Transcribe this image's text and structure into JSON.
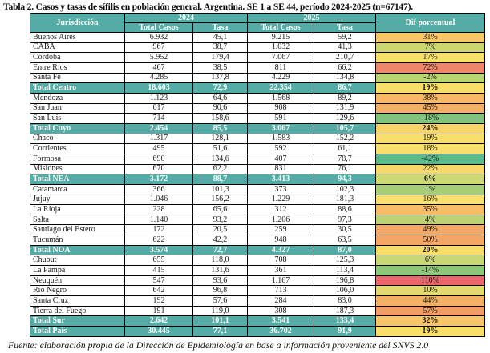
{
  "title": "Tabla 2. Casos y tasas de sífilis en población general. Argentina. SE 1 a SE 44, período 2024-2025 (n=67147).",
  "footer": "Fuente: elaboración propia de la Dirección de Epidemiología en base a información proveniente del SNVS 2.0",
  "colors": {
    "header_teal": "#55ACA6",
    "scale_green": "#57BB8A",
    "scale_yellow": "#F9DE6A",
    "scale_red": "#EB656C"
  },
  "table": {
    "headers": {
      "jurisdiction": "Jurisdicción",
      "year_2024": "2024",
      "year_2025": "2025",
      "total_cases_2024": "Total Casos",
      "rate_2024": "Tasa",
      "total_cases_2025": "Total Casos",
      "rate_2025": "Tasa",
      "diff": "Dif porcentual"
    },
    "rows": [
      {
        "name": "Buenos Aires",
        "cases_2024": "6.932",
        "rate_2024": "45,1",
        "cases_2025": "9.215",
        "rate_2025": "59,2",
        "diff": "31%",
        "diff_color": "#F8C868",
        "total": false
      },
      {
        "name": "CABA",
        "cases_2024": "967",
        "rate_2024": "38,7",
        "cases_2025": "1.032",
        "rate_2025": "41,3",
        "diff": "7%",
        "diff_color": "#CBD671",
        "total": false
      },
      {
        "name": "Córdoba",
        "cases_2024": "5.952",
        "rate_2024": "179,4",
        "cases_2025": "7.067",
        "rate_2025": "210,7",
        "diff": "17%",
        "diff_color": "#F9E06D",
        "total": false
      },
      {
        "name": "Entre Ríos",
        "cases_2024": "467",
        "rate_2024": "38,5",
        "cases_2025": "811",
        "rate_2025": "66,2",
        "diff": "72%",
        "diff_color": "#F0876A",
        "total": false
      },
      {
        "name": "Santa Fe",
        "cases_2024": "4.285",
        "rate_2024": "137,8",
        "cases_2025": "4.229",
        "rate_2025": "134,8",
        "diff": "-2%",
        "diff_color": "#B9D473",
        "total": false
      },
      {
        "name": "Total Centro",
        "cases_2024": "18.603",
        "rate_2024": "72,9",
        "cases_2025": "22.354",
        "rate_2025": "86,7",
        "diff": "19%",
        "diff_color": "#F9DE6A",
        "total": true
      },
      {
        "name": "Mendoza",
        "cases_2024": "1.123",
        "rate_2024": "64,6",
        "cases_2025": "1.568",
        "rate_2025": "89,2",
        "diff": "38%",
        "diff_color": "#F7B967",
        "total": false
      },
      {
        "name": "San Juan",
        "cases_2024": "617",
        "rate_2024": "90,6",
        "cases_2025": "908",
        "rate_2025": "131,9",
        "diff": "45%",
        "diff_color": "#F5AF67",
        "total": false
      },
      {
        "name": "San Luis",
        "cases_2024": "714",
        "rate_2024": "158,6",
        "cases_2025": "591",
        "rate_2025": "129,6",
        "diff": "-18%",
        "diff_color": "#7FC37D",
        "total": false
      },
      {
        "name": "Total Cuyo",
        "cases_2024": "2.454",
        "rate_2024": "85,5",
        "cases_2025": "3.067",
        "rate_2025": "105,7",
        "diff": "24%",
        "diff_color": "#F8D469",
        "total": true
      },
      {
        "name": "Chaco",
        "cases_2024": "1.317",
        "rate_2024": "128,1",
        "cases_2025": "1.583",
        "rate_2025": "152,2",
        "diff": "19%",
        "diff_color": "#F9DE6B",
        "total": false
      },
      {
        "name": "Corrientes",
        "cases_2024": "495",
        "rate_2024": "51,6",
        "cases_2025": "592",
        "rate_2025": "61,1",
        "diff": "18%",
        "diff_color": "#F9DF6C",
        "total": false
      },
      {
        "name": "Formosa",
        "cases_2024": "690",
        "rate_2024": "134,6",
        "cases_2025": "407",
        "rate_2025": "78,7",
        "diff": "-42%",
        "diff_color": "#57BB8A",
        "total": false
      },
      {
        "name": "Misiones",
        "cases_2024": "670",
        "rate_2024": "62,2",
        "cases_2025": "831",
        "rate_2025": "76,1",
        "diff": "22%",
        "diff_color": "#F9D86A",
        "total": false
      },
      {
        "name": "Total NEA",
        "cases_2024": "3.172",
        "rate_2024": "88,7",
        "cases_2025": "3.413",
        "rate_2025": "94,3",
        "diff": "6%",
        "diff_color": "#CDD975",
        "total": true
      },
      {
        "name": "Catamarca",
        "cases_2024": "366",
        "rate_2024": "101,3",
        "cases_2025": "373",
        "rate_2025": "102,3",
        "diff": "1%",
        "diff_color": "#A6CE76",
        "total": false
      },
      {
        "name": "Jujuy",
        "cases_2024": "1.046",
        "rate_2024": "156,2",
        "cases_2025": "1.229",
        "rate_2025": "181,3",
        "diff": "16%",
        "diff_color": "#F9E06E",
        "total": false
      },
      {
        "name": "La Rioja",
        "cases_2024": "228",
        "rate_2024": "65,6",
        "cases_2025": "312",
        "rate_2025": "88,6",
        "diff": "35%",
        "diff_color": "#F7BD68",
        "total": false
      },
      {
        "name": "Salta",
        "cases_2024": "1.140",
        "rate_2024": "93,2",
        "cases_2025": "1.206",
        "rate_2025": "97,3",
        "diff": "4%",
        "diff_color": "#BDD274",
        "total": false
      },
      {
        "name": "Santiago del Estero",
        "cases_2024": "172",
        "rate_2024": "20,5",
        "cases_2025": "259",
        "rate_2025": "30,5",
        "diff": "49%",
        "diff_color": "#F4A866",
        "total": false
      },
      {
        "name": "Tucumán",
        "cases_2024": "622",
        "rate_2024": "42,2",
        "cases_2025": "948",
        "rate_2025": "63,5",
        "diff": "50%",
        "diff_color": "#F4A666",
        "total": false
      },
      {
        "name": "Total NOA",
        "cases_2024": "3.574",
        "rate_2024": "72,7",
        "cases_2025": "4.327",
        "rate_2025": "87,0",
        "diff": "20%",
        "diff_color": "#F9DD69",
        "total": true
      },
      {
        "name": "Chubut",
        "cases_2024": "655",
        "rate_2024": "118,0",
        "cases_2025": "708",
        "rate_2025": "125,3",
        "diff": "6%",
        "diff_color": "#C9D674",
        "total": false
      },
      {
        "name": "La Pampa",
        "cases_2024": "415",
        "rate_2024": "131,6",
        "cases_2025": "361",
        "rate_2025": "113,4",
        "diff": "-14%",
        "diff_color": "#8FC77A",
        "total": false
      },
      {
        "name": "Neuquén",
        "cases_2024": "547",
        "rate_2024": "93,6",
        "cases_2025": "1.167",
        "rate_2025": "196,8",
        "diff": "110%",
        "diff_color": "#EB656C",
        "total": false
      },
      {
        "name": "Río Negro",
        "cases_2024": "642",
        "rate_2024": "96,8",
        "cases_2025": "713",
        "rate_2025": "106,0",
        "diff": "10%",
        "diff_color": "#E3D96F",
        "total": false
      },
      {
        "name": "Santa Cruz",
        "cases_2024": "192",
        "rate_2024": "57,6",
        "cases_2025": "284",
        "rate_2025": "83,0",
        "diff": "44%",
        "diff_color": "#F5B067",
        "total": false
      },
      {
        "name": "Tierra del Fuego",
        "cases_2024": "191",
        "rate_2024": "119,0",
        "cases_2025": "308",
        "rate_2025": "187,3",
        "diff": "57%",
        "diff_color": "#F29C67",
        "total": false
      },
      {
        "name": "Total Sur",
        "cases_2024": "2.642",
        "rate_2024": "101,1",
        "cases_2025": "3.541",
        "rate_2025": "133,4",
        "diff": "32%",
        "diff_color": "#F8C668",
        "total": true
      },
      {
        "name": "Total País",
        "cases_2024": "30.445",
        "rate_2024": "77,1",
        "cases_2025": "36.702",
        "rate_2025": "91,9",
        "diff": "19%",
        "diff_color": "#F9DE6A",
        "total": true
      }
    ]
  }
}
